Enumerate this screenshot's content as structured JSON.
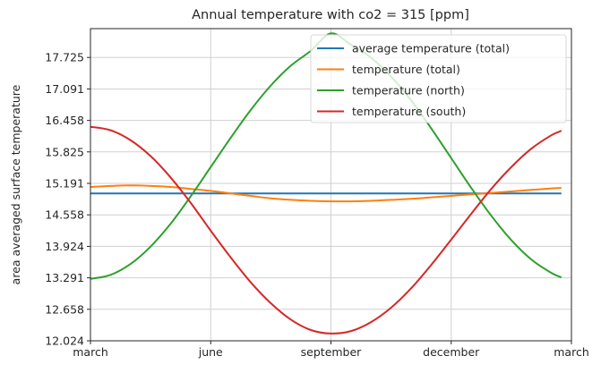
{
  "chart_data": {
    "type": "line",
    "title": "Annual temperature with co2 = 315 [ppm]",
    "xlabel": "",
    "ylabel": "area averaged surface temperature",
    "xlim": [
      0,
      12
    ],
    "ylim": [
      12.024,
      18.305
    ],
    "grid": true,
    "legend_position": "top-right",
    "x_ticks": [
      {
        "value": 0,
        "label": "march"
      },
      {
        "value": 3,
        "label": "june"
      },
      {
        "value": 6,
        "label": "september"
      },
      {
        "value": 9,
        "label": "december"
      },
      {
        "value": 12,
        "label": "march"
      }
    ],
    "y_ticks": [
      12.024,
      12.658,
      13.291,
      13.924,
      14.558,
      15.191,
      15.825,
      16.458,
      17.091,
      17.725
    ],
    "y_tick_labels": [
      "12.024",
      "12.658",
      "13.291",
      "13.924",
      "14.558",
      "15.191",
      "15.825",
      "16.458",
      "17.091",
      "17.725"
    ],
    "x": [
      0,
      0.5,
      1,
      1.5,
      2,
      2.5,
      3,
      3.5,
      4,
      4.5,
      5,
      5.5,
      6,
      6.5,
      7,
      7.5,
      8,
      8.5,
      9,
      9.5,
      10,
      10.5,
      11,
      11.5,
      11.75
    ],
    "series": [
      {
        "name": "average temperature (total)",
        "color": "#1f77b4",
        "values": [
          14.99,
          14.99,
          14.99,
          14.99,
          14.99,
          14.99,
          14.99,
          14.99,
          14.99,
          14.99,
          14.99,
          14.99,
          14.99,
          14.99,
          14.99,
          14.99,
          14.99,
          14.99,
          14.99,
          14.99,
          14.99,
          14.99,
          14.99,
          14.99,
          14.99
        ]
      },
      {
        "name": "temperature (total)",
        "color": "#ff7f0e",
        "values": [
          15.12,
          15.14,
          15.15,
          15.14,
          15.12,
          15.08,
          15.04,
          14.99,
          14.94,
          14.89,
          14.86,
          14.84,
          14.83,
          14.83,
          14.84,
          14.86,
          14.88,
          14.91,
          14.94,
          14.97,
          15.0,
          15.03,
          15.06,
          15.09,
          15.1
        ]
      },
      {
        "name": "temperature (north)",
        "color": "#2ca02c",
        "values": [
          13.27,
          13.35,
          13.57,
          13.92,
          14.38,
          14.93,
          15.52,
          16.11,
          16.67,
          17.16,
          17.56,
          17.86,
          18.21,
          17.98,
          17.72,
          17.34,
          16.86,
          16.3,
          15.7,
          15.1,
          14.54,
          14.05,
          13.66,
          13.39,
          13.3
        ]
      },
      {
        "name": "temperature (south)",
        "color": "#d62728",
        "values": [
          16.33,
          16.26,
          16.06,
          15.74,
          15.31,
          14.8,
          14.24,
          13.7,
          13.2,
          12.78,
          12.45,
          12.24,
          12.17,
          12.22,
          12.4,
          12.69,
          13.08,
          13.55,
          14.06,
          14.58,
          15.08,
          15.52,
          15.89,
          16.16,
          16.25
        ]
      }
    ]
  }
}
